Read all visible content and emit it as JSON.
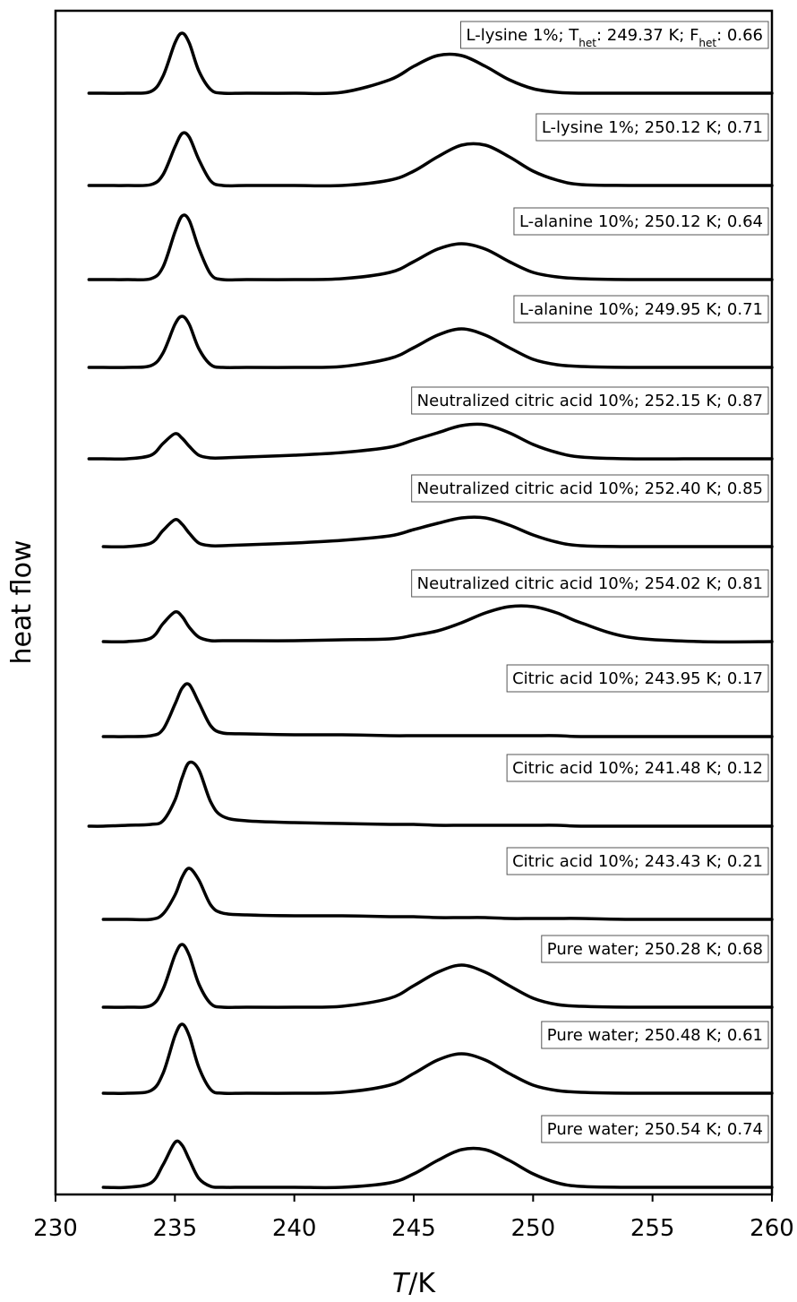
{
  "chart_data": {
    "type": "line",
    "xlabel": [
      "T",
      "/K"
    ],
    "ylabel": "heat flow",
    "xlim": [
      230,
      260
    ],
    "xticks": [
      230,
      235,
      240,
      245,
      250,
      255,
      260
    ],
    "ylim": [
      0,
      13.21
    ],
    "x": [
      231.4,
      232,
      233,
      234,
      234.5,
      235,
      235.3,
      235.6,
      236,
      236.5,
      237,
      238,
      240,
      242,
      244,
      245,
      246,
      247,
      248,
      249,
      250,
      251,
      252,
      254,
      257,
      260
    ],
    "series": [
      {
        "name": [
          "L-lysine 1%; T",
          "het",
          ": 249.37 K; F",
          "het",
          ": 0.66"
        ],
        "color": "#000000",
        "values": [
          12.29,
          12.29,
          12.29,
          12.31,
          12.48,
          12.85,
          12.96,
          12.85,
          12.54,
          12.33,
          12.29,
          12.29,
          12.29,
          12.3,
          12.44,
          12.59,
          12.71,
          12.71,
          12.59,
          12.44,
          12.34,
          12.3,
          12.29,
          12.29,
          12.29,
          12.29
        ]
      },
      {
        "name": "L-lysine 1%; 250.12 K; 0.71",
        "color": "#000000",
        "values": [
          11.26,
          11.26,
          11.26,
          11.27,
          11.38,
          11.69,
          11.84,
          11.8,
          11.55,
          11.31,
          11.26,
          11.26,
          11.26,
          11.26,
          11.32,
          11.42,
          11.58,
          11.71,
          11.71,
          11.58,
          11.42,
          11.32,
          11.27,
          11.26,
          11.26,
          11.26
        ]
      },
      {
        "name": "L-alanine 10%; 250.12 K; 0.64",
        "color": "#000000",
        "values": [
          10.21,
          10.21,
          10.21,
          10.22,
          10.35,
          10.74,
          10.92,
          10.87,
          10.56,
          10.27,
          10.21,
          10.21,
          10.21,
          10.22,
          10.29,
          10.41,
          10.55,
          10.61,
          10.55,
          10.41,
          10.29,
          10.24,
          10.22,
          10.21,
          10.21,
          10.21
        ]
      },
      {
        "name": "L-alanine 10%; 249.95 K; 0.71",
        "color": "#000000",
        "values": [
          9.23,
          9.23,
          9.23,
          9.25,
          9.39,
          9.71,
          9.8,
          9.71,
          9.44,
          9.26,
          9.23,
          9.23,
          9.23,
          9.24,
          9.33,
          9.45,
          9.59,
          9.66,
          9.59,
          9.45,
          9.32,
          9.26,
          9.24,
          9.23,
          9.23,
          9.23
        ]
      },
      {
        "name": "Neutralized citric acid 10%; 252.15 K; 0.87",
        "color": "#000000",
        "values": [
          8.21,
          8.21,
          8.21,
          8.25,
          8.38,
          8.49,
          8.44,
          8.35,
          8.25,
          8.22,
          8.22,
          8.23,
          8.25,
          8.28,
          8.34,
          8.42,
          8.5,
          8.58,
          8.59,
          8.5,
          8.37,
          8.28,
          8.23,
          8.21,
          8.21,
          8.21
        ]
      },
      {
        "name": "Neutralized citric acid 10%; 252.40 K; 0.85",
        "color": "#000000",
        "values": [
          null,
          7.23,
          7.23,
          7.27,
          7.41,
          7.53,
          7.48,
          7.38,
          7.27,
          7.24,
          7.24,
          7.25,
          7.27,
          7.3,
          7.35,
          7.42,
          7.49,
          7.55,
          7.55,
          7.47,
          7.36,
          7.28,
          7.24,
          7.23,
          7.23,
          7.23
        ]
      },
      {
        "name": "Neutralized citric acid 10%; 254.02 K; 0.81",
        "color": "#000000",
        "values": [
          null,
          6.17,
          6.17,
          6.21,
          6.37,
          6.5,
          6.45,
          6.33,
          6.22,
          6.18,
          6.18,
          6.18,
          6.18,
          6.19,
          6.2,
          6.24,
          6.29,
          6.38,
          6.49,
          6.56,
          6.56,
          6.49,
          6.38,
          6.22,
          6.17,
          6.17
        ]
      },
      {
        "name": "Citric acid 10%; 243.95 K; 0.17",
        "color": "#000000",
        "values": [
          null,
          5.11,
          5.11,
          5.12,
          5.19,
          5.47,
          5.65,
          5.69,
          5.49,
          5.23,
          5.15,
          5.14,
          5.13,
          5.13,
          5.12,
          5.12,
          5.12,
          5.12,
          5.12,
          5.12,
          5.12,
          5.12,
          5.11,
          5.11,
          5.11,
          5.11
        ]
      },
      {
        "name": "Citric acid 10%; 241.48 K; 0.12",
        "color": "#000000",
        "values": [
          4.11,
          4.11,
          4.12,
          4.13,
          4.17,
          4.4,
          4.65,
          4.82,
          4.74,
          4.38,
          4.22,
          4.17,
          4.15,
          4.14,
          4.13,
          4.13,
          4.12,
          4.12,
          4.12,
          4.12,
          4.12,
          4.12,
          4.11,
          4.11,
          4.11,
          4.11
        ]
      },
      {
        "name": "Citric acid 10%; 243.43 K; 0.21",
        "color": "#000000",
        "values": [
          null,
          3.07,
          3.07,
          3.07,
          3.13,
          3.34,
          3.54,
          3.64,
          3.51,
          3.23,
          3.14,
          3.12,
          3.11,
          3.11,
          3.1,
          3.1,
          3.09,
          3.09,
          3.09,
          3.08,
          3.08,
          3.08,
          3.08,
          3.07,
          3.07,
          3.07
        ]
      },
      {
        "name": "Pure water; 250.28 K; 0.68",
        "color": "#000000",
        "values": [
          null,
          2.09,
          2.09,
          2.11,
          2.29,
          2.67,
          2.79,
          2.67,
          2.35,
          2.13,
          2.09,
          2.09,
          2.09,
          2.1,
          2.19,
          2.33,
          2.48,
          2.56,
          2.48,
          2.33,
          2.19,
          2.12,
          2.1,
          2.09,
          2.09,
          2.09
        ]
      },
      {
        "name": "Pure water; 250.48 K; 0.61",
        "color": "#000000",
        "values": [
          null,
          1.13,
          1.13,
          1.16,
          1.35,
          1.77,
          1.9,
          1.77,
          1.42,
          1.17,
          1.13,
          1.13,
          1.13,
          1.14,
          1.22,
          1.35,
          1.5,
          1.57,
          1.5,
          1.35,
          1.22,
          1.16,
          1.14,
          1.13,
          1.13,
          1.13
        ]
      },
      {
        "name": "Pure water; 250.54 K; 0.74",
        "color": "#000000",
        "values": [
          null,
          0.08,
          0.08,
          0.13,
          0.33,
          0.58,
          0.55,
          0.39,
          0.18,
          0.09,
          0.08,
          0.08,
          0.08,
          0.08,
          0.13,
          0.23,
          0.38,
          0.5,
          0.5,
          0.38,
          0.23,
          0.13,
          0.09,
          0.08,
          0.08,
          0.08
        ]
      }
    ]
  }
}
